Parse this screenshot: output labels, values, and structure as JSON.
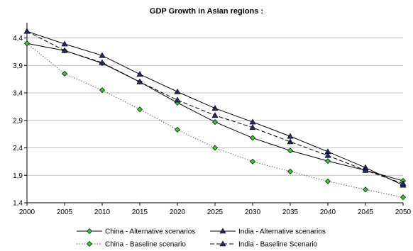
{
  "chart_data": {
    "type": "line",
    "title": "GDP Growth in Asian regions :",
    "xlabel": "",
    "ylabel": "",
    "x": [
      2000,
      2005,
      2010,
      2015,
      2020,
      2025,
      2030,
      2035,
      2040,
      2045,
      2050
    ],
    "xticks": [
      "2000",
      "2005",
      "2010",
      "2015",
      "2020",
      "2025",
      "2030",
      "2035",
      "2040",
      "2045",
      "2050"
    ],
    "yticks": [
      "1,4",
      "1,9",
      "2,4",
      "2,9",
      "3,4",
      "3,9",
      "4,4"
    ],
    "ylim": [
      1.4,
      4.6
    ],
    "grid": "horizontal",
    "legend_position": "bottom",
    "series": [
      {
        "name": "China -  Alternative scenarios",
        "style": "solid",
        "marker": "diamond",
        "color": "#000000",
        "marker_color": "#33cc33",
        "values": [
          4.3,
          4.17,
          3.94,
          3.6,
          3.22,
          2.87,
          2.58,
          2.35,
          2.16,
          1.99,
          1.8
        ]
      },
      {
        "name": "India -  Alternative scenarios",
        "style": "solid",
        "marker": "triangle",
        "color": "#000000",
        "marker_color": "#1f2a6b",
        "values": [
          4.52,
          4.29,
          4.08,
          3.74,
          3.42,
          3.12,
          2.87,
          2.61,
          2.33,
          2.04,
          1.72
        ]
      },
      {
        "name": "China -  Baseline scenario",
        "style": "dotted",
        "marker": "diamond",
        "color": "#444444",
        "marker_color": "#33cc33",
        "values": [
          4.3,
          3.75,
          3.45,
          3.1,
          2.73,
          2.4,
          2.15,
          1.97,
          1.79,
          1.64,
          1.5
        ]
      },
      {
        "name": "India - Baseline Scenario",
        "style": "dashed",
        "marker": "triangle",
        "color": "#000000",
        "marker_color": "#1f2a6b",
        "values": [
          4.52,
          4.17,
          3.95,
          3.6,
          3.27,
          2.99,
          2.77,
          2.51,
          2.26,
          1.99,
          1.75
        ]
      }
    ]
  }
}
